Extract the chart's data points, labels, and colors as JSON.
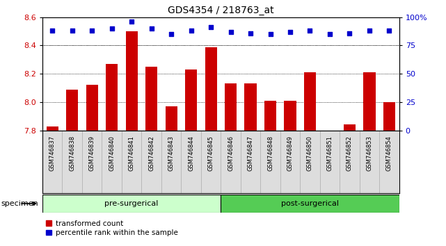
{
  "title": "GDS4354 / 218763_at",
  "samples": [
    "GSM746837",
    "GSM746838",
    "GSM746839",
    "GSM746840",
    "GSM746841",
    "GSM746842",
    "GSM746843",
    "GSM746844",
    "GSM746845",
    "GSM746846",
    "GSM746847",
    "GSM746848",
    "GSM746849",
    "GSM746850",
    "GSM746851",
    "GSM746852",
    "GSM746853",
    "GSM746854"
  ],
  "bar_values": [
    7.83,
    8.09,
    8.12,
    8.27,
    8.5,
    8.25,
    7.97,
    8.23,
    8.39,
    8.13,
    8.13,
    8.01,
    8.01,
    8.21,
    7.8,
    7.84,
    8.21,
    8.0
  ],
  "dot_values": [
    88,
    88,
    88,
    90,
    96,
    90,
    85,
    88,
    91,
    87,
    86,
    85,
    87,
    88,
    85,
    86,
    88,
    88
  ],
  "pre_surgical_count": 9,
  "post_surgical_count": 9,
  "ylim_left": [
    7.8,
    8.6
  ],
  "ylim_right": [
    0,
    100
  ],
  "yticks_left": [
    7.8,
    8.0,
    8.2,
    8.4,
    8.6
  ],
  "yticks_right": [
    0,
    25,
    50,
    75,
    100
  ],
  "bar_color": "#cc0000",
  "dot_color": "#0000cc",
  "pre_color": "#ccffcc",
  "post_color": "#55cc55",
  "xlabel_area": "specimen",
  "legend_bar": "transformed count",
  "legend_dot": "percentile rank within the sample",
  "background_color": "#ffffff",
  "xticklabel_bg": "#dddddd",
  "grid_color": "#000000"
}
